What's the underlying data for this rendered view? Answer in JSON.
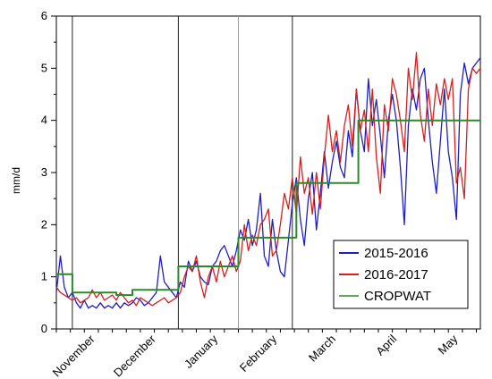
{
  "chart_data": {
    "type": "line",
    "ylabel": "mm/d",
    "xlabel": "",
    "ylim": [
      0,
      6
    ],
    "yticks": [
      "0",
      "1",
      "2",
      "3",
      "4",
      "5",
      "6"
    ],
    "month_labels": [
      "November",
      "December",
      "January",
      "February",
      "March",
      "April",
      "May"
    ],
    "month_boundaries_day": [
      0,
      30,
      61,
      92,
      120,
      151,
      181,
      212
    ],
    "divider_lines_day": [
      8,
      61,
      91,
      118
    ],
    "legend": {
      "placement": "bottom-right",
      "entries": [
        "2015-2016",
        "2016-2017",
        "CROPWAT"
      ]
    },
    "grid": false,
    "series": [
      {
        "name": "2015-2016",
        "color": "#1f1fbf",
        "x": [
          0,
          2,
          4,
          6,
          8,
          10,
          12,
          14,
          16,
          18,
          20,
          22,
          24,
          26,
          28,
          30,
          32,
          34,
          36,
          38,
          40,
          42,
          44,
          46,
          48,
          50,
          52,
          54,
          56,
          58,
          60,
          62,
          64,
          66,
          68,
          70,
          72,
          74,
          76,
          78,
          80,
          82,
          84,
          86,
          88,
          90,
          92,
          94,
          96,
          98,
          100,
          102,
          104,
          106,
          108,
          110,
          112,
          114,
          116,
          118,
          120,
          122,
          124,
          126,
          128,
          130,
          132,
          134,
          136,
          138,
          140,
          142,
          144,
          146,
          148,
          150,
          152,
          154,
          156,
          158,
          160,
          162,
          164,
          166,
          168,
          170,
          172,
          174,
          176,
          178,
          180,
          182,
          184,
          186,
          188,
          190,
          192,
          194,
          196,
          198,
          200,
          202,
          204,
          206,
          208,
          210,
          212
        ],
        "values": [
          0.7,
          1.4,
          0.8,
          0.6,
          0.7,
          0.5,
          0.4,
          0.55,
          0.4,
          0.45,
          0.4,
          0.5,
          0.4,
          0.45,
          0.4,
          0.5,
          0.4,
          0.5,
          0.45,
          0.5,
          0.6,
          0.55,
          0.45,
          0.5,
          0.6,
          0.7,
          1.4,
          0.9,
          0.8,
          0.7,
          0.6,
          0.9,
          0.8,
          1.3,
          1.1,
          1.3,
          1.0,
          0.9,
          0.85,
          1.2,
          1.3,
          1.5,
          1.6,
          1.4,
          1.2,
          1.5,
          1.9,
          1.7,
          2.1,
          1.6,
          1.9,
          2.6,
          1.4,
          1.2,
          2.1,
          1.5,
          1.1,
          1.0,
          1.7,
          2.4,
          2.9,
          2.1,
          1.6,
          2.5,
          3.0,
          1.9,
          2.6,
          3.4,
          2.7,
          3.2,
          3.6,
          3.1,
          2.9,
          3.8,
          3.3,
          4.6,
          3.8,
          3.4,
          4.8,
          3.9,
          4.4,
          3.7,
          2.9,
          4.0,
          4.5,
          4.0,
          3.1,
          2.0,
          3.9,
          4.6,
          4.2,
          4.8,
          5.0,
          4.0,
          3.2,
          2.6,
          3.6,
          4.6,
          3.4,
          2.9,
          2.1,
          4.5,
          5.1,
          4.7,
          5.0,
          5.1,
          5.2
        ]
      },
      {
        "name": "2016-2017",
        "color": "#d42020",
        "x": [
          0,
          2,
          4,
          6,
          8,
          10,
          12,
          14,
          16,
          18,
          20,
          22,
          24,
          26,
          28,
          30,
          32,
          34,
          36,
          38,
          40,
          42,
          44,
          46,
          48,
          50,
          52,
          54,
          56,
          58,
          60,
          62,
          64,
          66,
          68,
          70,
          72,
          74,
          76,
          78,
          80,
          82,
          84,
          86,
          88,
          90,
          92,
          94,
          96,
          98,
          100,
          102,
          104,
          106,
          108,
          110,
          112,
          114,
          116,
          118,
          120,
          122,
          124,
          126,
          128,
          130,
          132,
          134,
          136,
          138,
          140,
          142,
          144,
          146,
          148,
          150,
          152,
          154,
          156,
          158,
          160,
          162,
          164,
          166,
          168,
          170,
          172,
          174,
          176,
          178,
          180,
          182,
          184,
          186,
          188,
          190,
          192,
          194,
          196,
          198,
          200,
          202,
          204,
          206,
          208,
          210,
          212
        ],
        "values": [
          0.8,
          0.7,
          0.65,
          0.6,
          0.55,
          0.6,
          0.5,
          0.55,
          0.6,
          0.75,
          0.6,
          0.7,
          0.55,
          0.6,
          0.65,
          0.55,
          0.7,
          0.6,
          0.5,
          0.55,
          0.45,
          0.6,
          0.55,
          0.5,
          0.45,
          0.5,
          0.55,
          0.6,
          0.5,
          0.55,
          0.6,
          0.7,
          1.0,
          1.2,
          1.1,
          1.4,
          0.9,
          0.6,
          1.0,
          1.2,
          0.9,
          1.3,
          1.0,
          1.2,
          1.4,
          1.1,
          1.3,
          2.0,
          1.5,
          1.8,
          1.6,
          2.0,
          2.1,
          2.3,
          1.4,
          1.5,
          2.0,
          2.6,
          2.3,
          2.9,
          2.2,
          3.3,
          2.6,
          2.9,
          2.2,
          3.0,
          2.3,
          3.3,
          4.1,
          3.4,
          3.8,
          3.2,
          3.9,
          4.3,
          3.5,
          4.6,
          3.8,
          4.2,
          3.4,
          4.6,
          3.3,
          2.6,
          4.3,
          3.8,
          4.8,
          4.5,
          4.0,
          3.4,
          5.0,
          4.4,
          5.3,
          4.1,
          3.6,
          4.6,
          3.9,
          4.7,
          4.3,
          4.8,
          4.4,
          4.8,
          2.8,
          3.1,
          2.5,
          4.6,
          5.0,
          4.9,
          5.0
        ]
      },
      {
        "name": "CROPWAT",
        "color": "#2a8a2a",
        "x": [
          0,
          8,
          8,
          30,
          30,
          38,
          38,
          61,
          61,
          76,
          76,
          91,
          91,
          106,
          106,
          120,
          120,
          136,
          136,
          151,
          151,
          166,
          166,
          182,
          182,
          212
        ],
        "values": [
          1.05,
          1.05,
          0.7,
          0.7,
          0.65,
          0.65,
          0.75,
          0.75,
          1.2,
          1.2,
          1.2,
          1.2,
          1.75,
          1.75,
          1.75,
          1.75,
          2.8,
          2.8,
          2.8,
          2.8,
          4.0,
          4.0,
          4.0,
          4.0,
          4.0,
          4.0
        ]
      }
    ]
  }
}
